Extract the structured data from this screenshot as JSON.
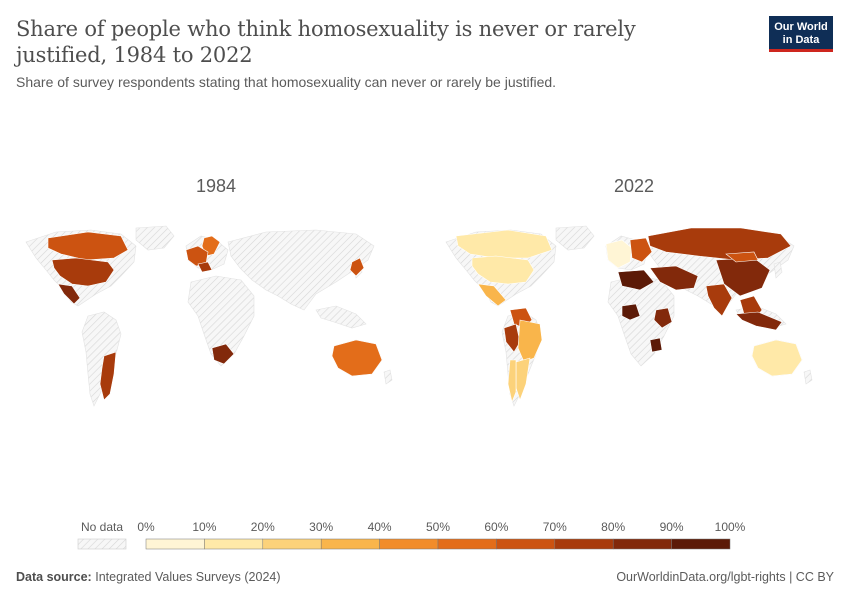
{
  "header": {
    "title": "Share of people who think homosexuality is never or rarely justified, 1984 to 2022",
    "subtitle": "Share of survey respondents stating that homosexuality can never or rarely be justified.",
    "logo_line1": "Our World",
    "logo_line2": "in Data"
  },
  "footer": {
    "source_label": "Data source:",
    "source_text": "Integrated Values Surveys (2024)",
    "url": "OurWorldinData.org/lgbt-rights | CC BY"
  },
  "chart_data": {
    "type": "choropleth",
    "title": "Share of people who think homosexuality is never or rarely justified, 1984 to 2022",
    "maps": [
      {
        "year": "1984",
        "regions": [
          {
            "name": "Canada",
            "value": 65
          },
          {
            "name": "United States",
            "value": 75
          },
          {
            "name": "Mexico",
            "value": 80
          },
          {
            "name": "Argentina",
            "value": 72
          },
          {
            "name": "Northern Europe",
            "value": 55
          },
          {
            "name": "Western Europe",
            "value": 65
          },
          {
            "name": "Southern Europe",
            "value": 70
          },
          {
            "name": "South Africa",
            "value": 85
          },
          {
            "name": "Japan",
            "value": 65
          },
          {
            "name": "Australia",
            "value": 55
          }
        ]
      },
      {
        "year": "2022",
        "regions": [
          {
            "name": "Canada",
            "value": 12
          },
          {
            "name": "United States",
            "value": 18
          },
          {
            "name": "Mexico",
            "value": 35
          },
          {
            "name": "Colombia",
            "value": 62
          },
          {
            "name": "Peru",
            "value": 70
          },
          {
            "name": "Brazil",
            "value": 35
          },
          {
            "name": "Argentina",
            "value": 25
          },
          {
            "name": "Chile",
            "value": 20
          },
          {
            "name": "Western Europe",
            "value": 8
          },
          {
            "name": "Eastern Europe",
            "value": 62
          },
          {
            "name": "Russia",
            "value": 78
          },
          {
            "name": "Middle East",
            "value": 88
          },
          {
            "name": "North Africa",
            "value": 92
          },
          {
            "name": "India",
            "value": 70
          },
          {
            "name": "China",
            "value": 82
          },
          {
            "name": "Mongolia",
            "value": 65
          },
          {
            "name": "Southeast Asia",
            "value": 75
          },
          {
            "name": "Indonesia",
            "value": 85
          },
          {
            "name": "Nigeria",
            "value": 92
          },
          {
            "name": "Ethiopia",
            "value": 88
          },
          {
            "name": "Zimbabwe",
            "value": 92
          },
          {
            "name": "Australia",
            "value": 15
          }
        ]
      }
    ],
    "legend": {
      "no_data_label": "No data",
      "ticks": [
        "0%",
        "10%",
        "20%",
        "30%",
        "40%",
        "50%",
        "60%",
        "70%",
        "80%",
        "90%",
        "100%"
      ],
      "colors": [
        "#fff5d5",
        "#ffe9a8",
        "#fcd27a",
        "#f9b54b",
        "#f28c2a",
        "#e36d1a",
        "#cc5311",
        "#a83b0c",
        "#82290b",
        "#5c1a07"
      ]
    },
    "no_data_color": "#efefef"
  }
}
